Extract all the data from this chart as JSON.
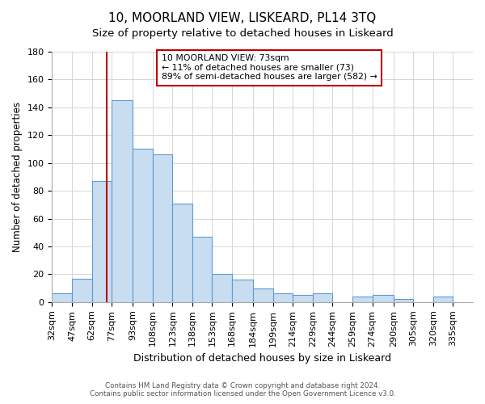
{
  "title": "10, MOORLAND VIEW, LISKEARD, PL14 3TQ",
  "subtitle": "Size of property relative to detached houses in Liskeard",
  "xlabel": "Distribution of detached houses by size in Liskeard",
  "ylabel": "Number of detached properties",
  "bin_labels": [
    "32sqm",
    "47sqm",
    "62sqm",
    "77sqm",
    "93sqm",
    "108sqm",
    "123sqm",
    "138sqm",
    "153sqm",
    "168sqm",
    "184sqm",
    "199sqm",
    "214sqm",
    "229sqm",
    "244sqm",
    "259sqm",
    "274sqm",
    "290sqm",
    "305sqm",
    "320sqm",
    "335sqm"
  ],
  "bar_heights": [
    6,
    17,
    87,
    145,
    110,
    106,
    71,
    47,
    20,
    16,
    10,
    6,
    5,
    6,
    0,
    4,
    5,
    2,
    0,
    4
  ],
  "bar_color": "#c9ddf0",
  "bar_edge_color": "#5b9bd5",
  "ylim": [
    0,
    180
  ],
  "yticks": [
    0,
    20,
    40,
    60,
    80,
    100,
    120,
    140,
    160,
    180
  ],
  "red_line_x": 73,
  "annotation_text": "10 MOORLAND VIEW: 73sqm\n← 11% of detached houses are smaller (73)\n89% of semi-detached houses are larger (582) →",
  "annotation_box_color": "#ffffff",
  "annotation_box_edge": "#c00000",
  "footer_line1": "Contains HM Land Registry data © Crown copyright and database right 2024.",
  "footer_line2": "Contains public sector information licensed under the Open Government Licence v3.0.",
  "background_color": "#ffffff",
  "grid_color": "#d0d0d0",
  "title_fontsize": 11,
  "subtitle_fontsize": 9.5,
  "bin_edges": [
    32,
    47,
    62,
    77,
    93,
    108,
    123,
    138,
    153,
    168,
    184,
    199,
    214,
    229,
    244,
    259,
    274,
    290,
    305,
    320,
    335
  ]
}
